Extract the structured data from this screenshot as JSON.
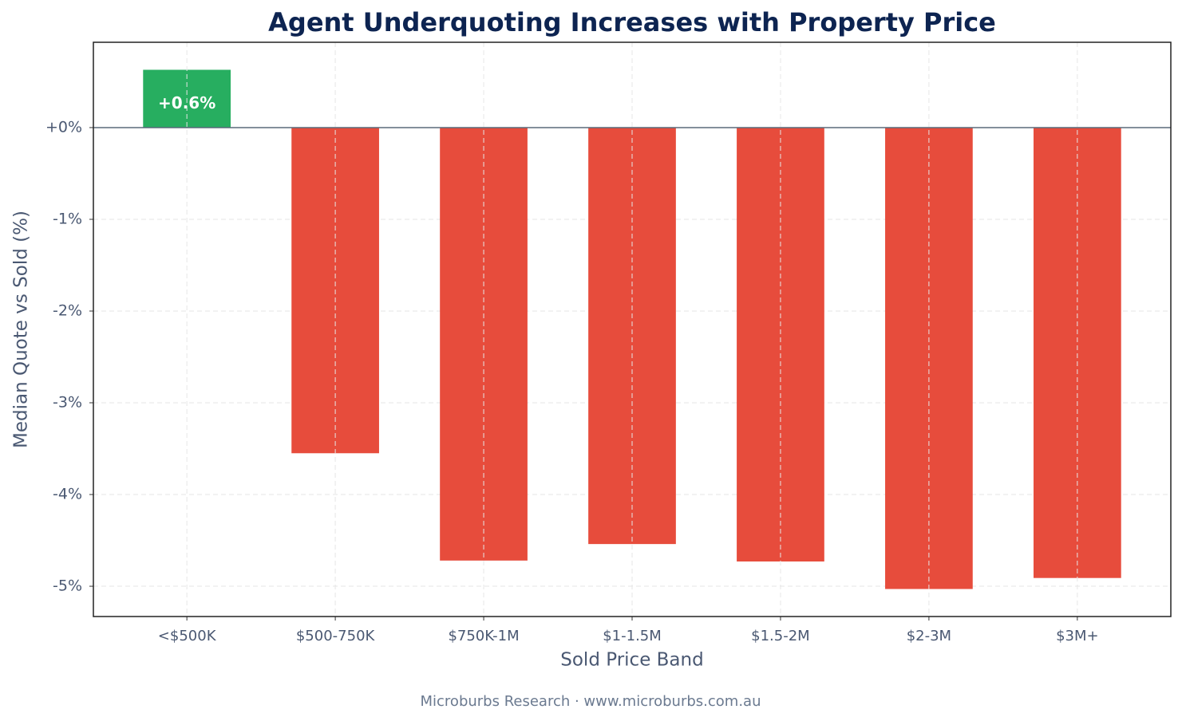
{
  "chart_data": {
    "type": "bar",
    "title": "Agent Underquoting Increases with Property Price",
    "x_label": "Sold Price Band",
    "y_label": "Median Quote vs Sold (%)",
    "footer": "Microburbs Research · www.microburbs.com.au",
    "categories": [
      "<$500K",
      "$500-750K",
      "$750K-1M",
      "$1-1.5M",
      "$1.5-2M",
      "$2-3M",
      "$3M+"
    ],
    "values": [
      0.63,
      -3.55,
      -4.72,
      -4.54,
      -4.73,
      -5.03,
      -4.91
    ],
    "value_labels": [
      "+0.6%",
      null,
      null,
      null,
      null,
      null,
      null
    ],
    "colors": [
      "#27ae60",
      "#e74c3c",
      "#e74c3c",
      "#e74c3c",
      "#e74c3c",
      "#e74c3c",
      "#e74c3c"
    ],
    "ylim": [
      -5.33,
      0.93
    ],
    "yticks": [
      {
        "value": 0,
        "label": "+0%"
      },
      {
        "value": -1,
        "label": "-1%"
      },
      {
        "value": -2,
        "label": "-2%"
      },
      {
        "value": -3,
        "label": "-3%"
      },
      {
        "value": -4,
        "label": "-4%"
      },
      {
        "value": -5,
        "label": "-5%"
      }
    ],
    "grid": true
  }
}
